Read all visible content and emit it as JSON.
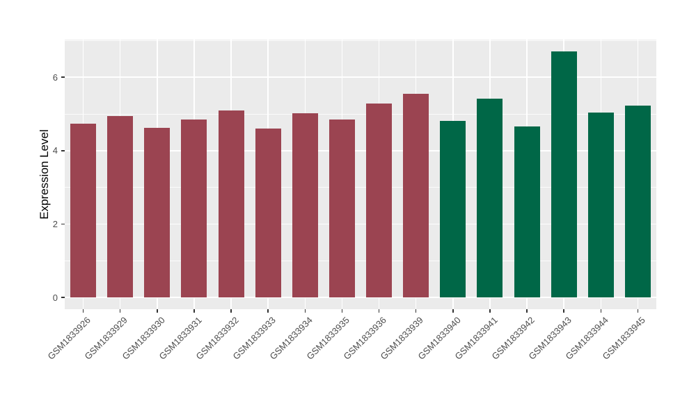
{
  "chart_data": {
    "type": "bar",
    "title": "",
    "xlabel": "",
    "ylabel": "Expression Level",
    "categories": [
      "GSM1833926",
      "GSM1833929",
      "GSM1833930",
      "GSM1833931",
      "GSM1833932",
      "GSM1833933",
      "GSM1833934",
      "GSM1833935",
      "GSM1833936",
      "GSM1833939",
      "GSM1833940",
      "GSM1833941",
      "GSM1833942",
      "GSM1833943",
      "GSM1833944",
      "GSM1833945"
    ],
    "values": [
      4.73,
      4.94,
      4.63,
      4.85,
      5.09,
      4.61,
      5.02,
      4.85,
      5.28,
      5.54,
      4.81,
      5.42,
      4.66,
      6.7,
      5.04,
      5.22
    ],
    "bar_colors": [
      "#9B4451",
      "#9B4451",
      "#9B4451",
      "#9B4451",
      "#9B4451",
      "#9B4451",
      "#9B4451",
      "#9B4451",
      "#9B4451",
      "#9B4451",
      "#006747",
      "#006747",
      "#006747",
      "#006747",
      "#006747",
      "#006747"
    ],
    "group_split": {
      "first_group_count": 10,
      "second_group_count": 6,
      "first_group_color": "#9B4451",
      "second_group_color": "#006747"
    },
    "yticks": [
      0,
      2,
      4,
      6
    ],
    "yticks_minor": [
      1,
      3,
      5,
      7
    ],
    "ylim": [
      0,
      7.03
    ],
    "grid": true,
    "legend": "none",
    "style": {
      "panel_bg": "#EBEBEB",
      "grid_color": "#FFFFFF",
      "tick_text_color": "#4D4D4D",
      "axis_title_color": "#000000",
      "tick_mark_color": "#333333",
      "x_label_rotation_deg": 45
    }
  }
}
